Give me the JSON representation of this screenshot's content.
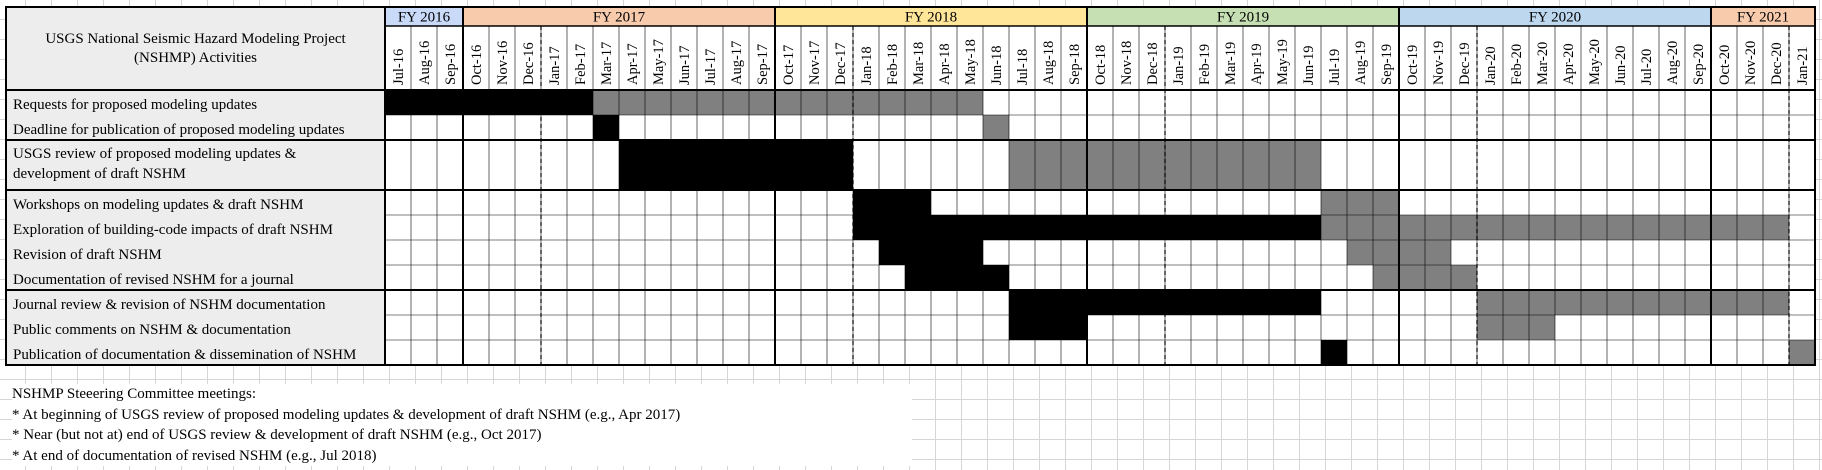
{
  "chart_data": {
    "type": "gantt",
    "title": "USGS National Seismic Hazard Modeling Project (NSHMP) Activities",
    "months": [
      "Jul-16",
      "Aug-16",
      "Sep-16",
      "Oct-16",
      "Nov-16",
      "Dec-16",
      "Jan-17",
      "Feb-17",
      "Mar-17",
      "Apr-17",
      "May-17",
      "Jun-17",
      "Jul-17",
      "Aug-17",
      "Sep-17",
      "Oct-17",
      "Nov-17",
      "Dec-17",
      "Jan-18",
      "Feb-18",
      "Mar-18",
      "Apr-18",
      "May-18",
      "Jun-18",
      "Jul-18",
      "Aug-18",
      "Sep-18",
      "Oct-18",
      "Nov-18",
      "Dec-18",
      "Jan-19",
      "Feb-19",
      "Mar-19",
      "Apr-19",
      "May-19",
      "Jun-19",
      "Jul-19",
      "Aug-19",
      "Sep-19",
      "Oct-19",
      "Nov-19",
      "Dec-19",
      "Jan-20",
      "Feb-20",
      "Mar-20",
      "Apr-20",
      "May-20",
      "Jun-20",
      "Jul-20",
      "Aug-20",
      "Sep-20",
      "Oct-20",
      "Nov-20",
      "Dec-20",
      "Jan-21"
    ],
    "fiscal_years": [
      {
        "label": "FY 2016",
        "start": "Jul-16",
        "end": "Sep-16",
        "color": "#c9daf8"
      },
      {
        "label": "FY 2017",
        "start": "Oct-16",
        "end": "Sep-17",
        "color": "#f8cbad"
      },
      {
        "label": "FY 2018",
        "start": "Oct-17",
        "end": "Sep-18",
        "color": "#ffe699"
      },
      {
        "label": "FY 2019",
        "start": "Oct-18",
        "end": "Sep-19",
        "color": "#c6e0b4"
      },
      {
        "label": "FY 2020",
        "start": "Oct-19",
        "end": "Sep-20",
        "color": "#bdd7ee"
      },
      {
        "label": "FY 2021",
        "start": "Oct-20",
        "end": "Jan-21",
        "color": "#f8cbad"
      }
    ],
    "activities": [
      {
        "label": "Requests for proposed modeling updates",
        "segments": [
          {
            "start": "Jul-16",
            "end": "Feb-17",
            "kind": "actual"
          },
          {
            "start": "Mar-17",
            "end": "May-18",
            "kind": "planned"
          }
        ]
      },
      {
        "label": "Deadline for publication of proposed modeling updates",
        "segments": [
          {
            "start": "Mar-17",
            "end": "Mar-17",
            "kind": "actual"
          },
          {
            "start": "Jun-18",
            "end": "Jun-18",
            "kind": "planned"
          }
        ]
      },
      {
        "label": "USGS review of proposed modeling updates & development of draft NSHM",
        "lines": [
          "USGS review of proposed modeling updates &",
          "development of draft NSHM"
        ],
        "segments": [
          {
            "start": "Apr-17",
            "end": "Dec-17",
            "kind": "actual"
          },
          {
            "start": "Jul-18",
            "end": "Jun-19",
            "kind": "planned"
          }
        ]
      },
      {
        "label": "Workshops on modeling updates & draft NSHM",
        "segments": [
          {
            "start": "Jan-18",
            "end": "Mar-18",
            "kind": "actual"
          },
          {
            "start": "Jul-19",
            "end": "Sep-19",
            "kind": "planned"
          }
        ]
      },
      {
        "label": "Exploration of building-code impacts of draft NSHM",
        "segments": [
          {
            "start": "Jan-18",
            "end": "Jun-19",
            "kind": "actual"
          },
          {
            "start": "Jul-19",
            "end": "Dec-20",
            "kind": "planned"
          }
        ]
      },
      {
        "label": "Revision of draft NSHM",
        "segments": [
          {
            "start": "Feb-18",
            "end": "May-18",
            "kind": "actual"
          },
          {
            "start": "Aug-19",
            "end": "Nov-19",
            "kind": "planned"
          }
        ]
      },
      {
        "label": "Documentation of revised NSHM for a journal",
        "segments": [
          {
            "start": "Mar-18",
            "end": "Jun-18",
            "kind": "actual"
          },
          {
            "start": "Sep-19",
            "end": "Dec-19",
            "kind": "planned"
          }
        ]
      },
      {
        "label": "Journal review & revision of NSHM documentation",
        "segments": [
          {
            "start": "Jul-18",
            "end": "Jun-19",
            "kind": "actual"
          },
          {
            "start": "Jan-20",
            "end": "Dec-20",
            "kind": "planned"
          }
        ]
      },
      {
        "label": "Public comments on NSHM & documentation",
        "segments": [
          {
            "start": "Jul-18",
            "end": "Sep-18",
            "kind": "actual"
          },
          {
            "start": "Jan-20",
            "end": "Mar-20",
            "kind": "planned"
          }
        ]
      },
      {
        "label": "Publication of documentation & dissemination of NSHM",
        "segments": [
          {
            "start": "Jul-19",
            "end": "Jul-19",
            "kind": "actual"
          },
          {
            "start": "Jan-21",
            "end": "Jan-21",
            "kind": "planned"
          }
        ]
      }
    ],
    "groups": [
      [
        0,
        1
      ],
      [
        2
      ],
      [
        3,
        4,
        5,
        6
      ],
      [
        7,
        8,
        9
      ]
    ],
    "dashed_after": [
      "Dec-16",
      "Dec-17",
      "Dec-18",
      "Dec-19",
      "Dec-20"
    ],
    "colors": {
      "actual": "#000000",
      "planned": "#808080",
      "label_bg": "#ededed"
    }
  },
  "notes": {
    "heading": "NSHMP Steeering Committee meetings:",
    "items": [
      "* At beginning of USGS review of proposed modeling updates & development of draft NSHM (e.g., Apr 2017)",
      "* Near (but not at) end of USGS review & development of draft NSHM (e.g., Oct 2017)",
      "* At end of documentation of revised NSHM (e.g., Jul 2018)"
    ]
  }
}
